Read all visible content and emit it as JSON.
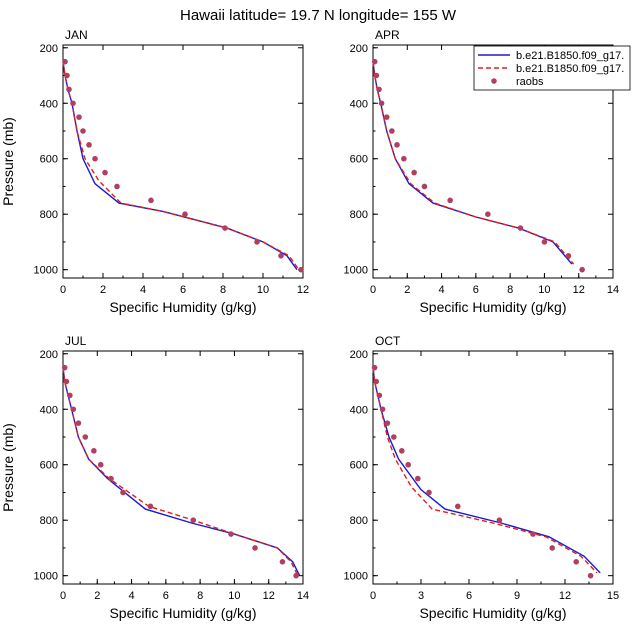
{
  "figure": {
    "title": "Hawaii  latitude= 19.7 N longitude= 155 W"
  },
  "legend": {
    "entries": [
      {
        "label": "b.e21.B1850.f09_g17.",
        "style": "solid",
        "color": "#1a1ad6"
      },
      {
        "label": "b.e21.B1850.f09_g17.",
        "style": "dashed",
        "color": "#e0201a"
      },
      {
        "label": "raobs",
        "style": "marker",
        "color": "#b04060"
      }
    ]
  },
  "colors": {
    "model_solid": "#1a1ad6",
    "model_dashed": "#e0201a",
    "raobs": "#b04060"
  },
  "chart_data": [
    {
      "type": "line",
      "title": "JAN",
      "xlabel": "Specific Humidity (g/kg)",
      "ylabel": "Pressure (mb)",
      "xlim": [
        0,
        12
      ],
      "ylim": [
        1000,
        200
      ],
      "xticks": [
        0,
        2,
        4,
        6,
        8,
        10,
        12
      ],
      "yticks": [
        200,
        400,
        600,
        800,
        1000
      ],
      "series": [
        {
          "style": "solid",
          "points": [
            [
              0.0,
              250
            ],
            [
              0.1,
              300
            ],
            [
              0.25,
              350
            ],
            [
              0.45,
              400
            ],
            [
              0.7,
              500
            ],
            [
              1.0,
              600
            ],
            [
              1.6,
              690
            ],
            [
              2.8,
              760
            ],
            [
              5,
              790
            ],
            [
              8.2,
              850
            ],
            [
              10,
              900
            ],
            [
              11.2,
              950
            ],
            [
              11.7,
              1000
            ]
          ]
        },
        {
          "style": "dashed",
          "points": [
            [
              0.0,
              250
            ],
            [
              0.1,
              300
            ],
            [
              0.25,
              350
            ],
            [
              0.45,
              400
            ],
            [
              0.7,
              500
            ],
            [
              1.1,
              600
            ],
            [
              1.8,
              680
            ],
            [
              2.9,
              760
            ],
            [
              5,
              790
            ],
            [
              8.2,
              850
            ],
            [
              10,
              900
            ],
            [
              11.3,
              950
            ],
            [
              11.8,
              1000
            ]
          ]
        },
        {
          "style": "marker",
          "points": [
            [
              0.1,
              250
            ],
            [
              0.2,
              300
            ],
            [
              0.3,
              350
            ],
            [
              0.5,
              400
            ],
            [
              0.8,
              450
            ],
            [
              1.0,
              500
            ],
            [
              1.3,
              550
            ],
            [
              1.6,
              600
            ],
            [
              2.1,
              650
            ],
            [
              2.7,
              700
            ],
            [
              4.4,
              750
            ],
            [
              6.1,
              800
            ],
            [
              8.1,
              850
            ],
            [
              9.7,
              900
            ],
            [
              10.9,
              950
            ],
            [
              11.9,
              1000
            ]
          ]
        }
      ]
    },
    {
      "type": "line",
      "title": "APR",
      "xlabel": "Specific Humidity (g/kg)",
      "ylabel": "",
      "xlim": [
        0,
        14
      ],
      "ylim": [
        1000,
        200
      ],
      "xticks": [
        0,
        2,
        4,
        6,
        8,
        10,
        12,
        14
      ],
      "yticks": [
        200,
        400,
        600,
        800,
        1000
      ],
      "series": [
        {
          "style": "solid",
          "points": [
            [
              0.0,
              250
            ],
            [
              0.1,
              300
            ],
            [
              0.25,
              350
            ],
            [
              0.45,
              400
            ],
            [
              0.8,
              500
            ],
            [
              1.3,
              600
            ],
            [
              2.1,
              690
            ],
            [
              3.5,
              760
            ],
            [
              6,
              810
            ],
            [
              8.5,
              850
            ],
            [
              10.5,
              900
            ],
            [
              11.6,
              980
            ]
          ]
        },
        {
          "style": "dashed",
          "points": [
            [
              0.0,
              250
            ],
            [
              0.1,
              300
            ],
            [
              0.25,
              350
            ],
            [
              0.45,
              400
            ],
            [
              0.8,
              500
            ],
            [
              1.3,
              600
            ],
            [
              2.2,
              690
            ],
            [
              3.6,
              760
            ],
            [
              6,
              810
            ],
            [
              8.5,
              850
            ],
            [
              10.6,
              900
            ],
            [
              11.7,
              980
            ]
          ]
        },
        {
          "style": "marker",
          "points": [
            [
              0.1,
              250
            ],
            [
              0.2,
              300
            ],
            [
              0.35,
              350
            ],
            [
              0.5,
              400
            ],
            [
              0.8,
              450
            ],
            [
              1.1,
              500
            ],
            [
              1.4,
              550
            ],
            [
              1.8,
              600
            ],
            [
              2.4,
              650
            ],
            [
              3.0,
              700
            ],
            [
              4.5,
              750
            ],
            [
              6.7,
              800
            ],
            [
              8.6,
              850
            ],
            [
              10.0,
              900
            ],
            [
              11.4,
              950
            ],
            [
              12.2,
              1000
            ]
          ]
        }
      ]
    },
    {
      "type": "line",
      "title": "JUL",
      "xlabel": "Specific Humidity (g/kg)",
      "ylabel": "Pressure (mb)",
      "xlim": [
        0,
        14
      ],
      "ylim": [
        1000,
        200
      ],
      "xticks": [
        0,
        2,
        4,
        6,
        8,
        10,
        12,
        14
      ],
      "yticks": [
        200,
        400,
        600,
        800,
        1000
      ],
      "series": [
        {
          "style": "solid",
          "points": [
            [
              0.0,
              250
            ],
            [
              0.1,
              300
            ],
            [
              0.3,
              350
            ],
            [
              0.5,
              400
            ],
            [
              0.9,
              500
            ],
            [
              1.5,
              580
            ],
            [
              2.6,
              650
            ],
            [
              4.8,
              760
            ],
            [
              7.5,
              810
            ],
            [
              10,
              850
            ],
            [
              12.5,
              900
            ],
            [
              13.4,
              950
            ],
            [
              13.8,
              1000
            ]
          ]
        },
        {
          "style": "dashed",
          "points": [
            [
              0.0,
              250
            ],
            [
              0.1,
              300
            ],
            [
              0.3,
              350
            ],
            [
              0.5,
              400
            ],
            [
              0.9,
              500
            ],
            [
              1.5,
              580
            ],
            [
              2.7,
              650
            ],
            [
              5.0,
              750
            ],
            [
              7.6,
              800
            ],
            [
              10,
              850
            ],
            [
              12.5,
              900
            ],
            [
              13.3,
              950
            ],
            [
              13.7,
              1000
            ]
          ]
        },
        {
          "style": "marker",
          "points": [
            [
              0.1,
              250
            ],
            [
              0.2,
              300
            ],
            [
              0.4,
              350
            ],
            [
              0.6,
              400
            ],
            [
              0.9,
              450
            ],
            [
              1.3,
              500
            ],
            [
              1.8,
              550
            ],
            [
              2.2,
              600
            ],
            [
              2.8,
              650
            ],
            [
              3.5,
              700
            ],
            [
              5.1,
              750
            ],
            [
              7.6,
              800
            ],
            [
              9.8,
              850
            ],
            [
              11.2,
              900
            ],
            [
              12.8,
              950
            ],
            [
              13.6,
              1000
            ]
          ]
        }
      ]
    },
    {
      "type": "line",
      "title": "OCT",
      "xlabel": "Specific Humidity (g/kg)",
      "ylabel": "",
      "xlim": [
        0,
        15
      ],
      "ylim": [
        1000,
        200
      ],
      "xticks": [
        0,
        3,
        6,
        9,
        12,
        15
      ],
      "yticks": [
        200,
        400,
        600,
        800,
        1000
      ],
      "series": [
        {
          "style": "solid",
          "points": [
            [
              0.0,
              250
            ],
            [
              0.1,
              300
            ],
            [
              0.3,
              350
            ],
            [
              0.5,
              400
            ],
            [
              1.0,
              500
            ],
            [
              1.6,
              580
            ],
            [
              3.0,
              690
            ],
            [
              4.5,
              760
            ],
            [
              8,
              810
            ],
            [
              11,
              860
            ],
            [
              13.2,
              930
            ],
            [
              14.2,
              990
            ]
          ]
        },
        {
          "style": "dashed",
          "points": [
            [
              0.0,
              250
            ],
            [
              0.1,
              300
            ],
            [
              0.3,
              350
            ],
            [
              0.5,
              400
            ],
            [
              0.9,
              500
            ],
            [
              1.4,
              580
            ],
            [
              2.4,
              680
            ],
            [
              3.7,
              760
            ],
            [
              7.5,
              810
            ],
            [
              10.8,
              860
            ],
            [
              13.0,
              930
            ],
            [
              14.0,
              990
            ]
          ]
        },
        {
          "style": "marker",
          "points": [
            [
              0.1,
              250
            ],
            [
              0.2,
              300
            ],
            [
              0.4,
              350
            ],
            [
              0.6,
              400
            ],
            [
              0.9,
              450
            ],
            [
              1.3,
              500
            ],
            [
              1.8,
              550
            ],
            [
              2.2,
              600
            ],
            [
              2.8,
              650
            ],
            [
              3.5,
              700
            ],
            [
              5.3,
              750
            ],
            [
              7.9,
              800
            ],
            [
              10.0,
              850
            ],
            [
              11.2,
              900
            ],
            [
              12.7,
              950
            ],
            [
              13.6,
              1000
            ]
          ]
        }
      ]
    }
  ]
}
